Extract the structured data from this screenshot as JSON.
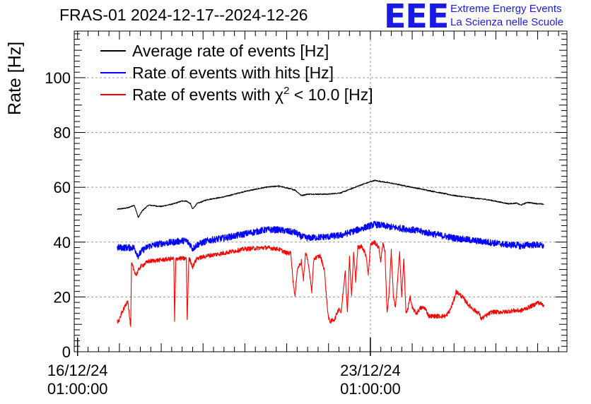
{
  "header": {
    "title": "FRAS-01 2024-12-17--2024-12-26",
    "logo_text": "EEE",
    "logo_line1": "Extreme Energy Events",
    "logo_line2": "La Scienza nelle Scuole"
  },
  "colors": {
    "black": "#000000",
    "blue": "#0000ff",
    "red": "#ff0000",
    "logo": "#1a1ae6"
  },
  "chart_data": {
    "type": "line",
    "title": "FRAS-01 2024-12-17--2024-12-26",
    "xlabel": "",
    "ylabel": "Rate [Hz]",
    "ylim": [
      0,
      117
    ],
    "xlim_days": [
      -0.08,
      11.7
    ],
    "x_unit": "days since 16/12/24 01:00:00",
    "grid": true,
    "legend_position": "top-left",
    "yticks": [
      0,
      20,
      40,
      60,
      80,
      100
    ],
    "xticks": [
      {
        "day": 0,
        "line1": "16/12/24",
        "line2": "01:00:00"
      },
      {
        "day": 7,
        "line1": "23/12/24",
        "line2": "01:00:00"
      }
    ],
    "legend": [
      {
        "label": "Average rate of events [Hz]",
        "color": "#000000"
      },
      {
        "label": "Rate of events with hits [Hz]",
        "color": "#0000ff"
      },
      {
        "label_prefix": "Rate of events with ",
        "chi": "χ",
        "sup": "2",
        "label_suffix": " < 10.0 [Hz]",
        "color": "#ff0000"
      }
    ],
    "series": [
      {
        "name": "Average rate of events [Hz]",
        "color": "#000000",
        "noise": 0.4,
        "points": [
          [
            0.95,
            52
          ],
          [
            1.2,
            52.5
          ],
          [
            1.35,
            53.5
          ],
          [
            1.4,
            51.5
          ],
          [
            1.45,
            49
          ],
          [
            1.55,
            51.5
          ],
          [
            1.7,
            53.5
          ],
          [
            2.0,
            53
          ],
          [
            2.3,
            54
          ],
          [
            2.5,
            55
          ],
          [
            2.6,
            55
          ],
          [
            2.7,
            54
          ],
          [
            2.75,
            52
          ],
          [
            2.85,
            54
          ],
          [
            3.1,
            55.5
          ],
          [
            3.5,
            56.5
          ],
          [
            4.0,
            58.5
          ],
          [
            4.5,
            60
          ],
          [
            4.8,
            60.5
          ],
          [
            5.2,
            59
          ],
          [
            5.35,
            57
          ],
          [
            5.5,
            57.5
          ],
          [
            6.0,
            57.5
          ],
          [
            6.3,
            58
          ],
          [
            6.8,
            61
          ],
          [
            7.1,
            62.5
          ],
          [
            7.5,
            61.5
          ],
          [
            8.0,
            60
          ],
          [
            8.5,
            58.5
          ],
          [
            9.0,
            57
          ],
          [
            9.5,
            56
          ],
          [
            9.8,
            55.5
          ],
          [
            10.3,
            54
          ],
          [
            10.5,
            54.2
          ],
          [
            10.6,
            53.5
          ],
          [
            10.75,
            54.5
          ],
          [
            11.0,
            54
          ],
          [
            11.15,
            53.8
          ]
        ]
      },
      {
        "name": "Rate of events with hits [Hz]",
        "color": "#0000ff",
        "noise": 2.4,
        "points": [
          [
            0.95,
            38
          ],
          [
            1.2,
            38
          ],
          [
            1.35,
            38
          ],
          [
            1.4,
            36.5
          ],
          [
            1.45,
            35
          ],
          [
            1.55,
            37
          ],
          [
            1.7,
            38.5
          ],
          [
            2.0,
            39.5
          ],
          [
            2.3,
            40
          ],
          [
            2.5,
            40.5
          ],
          [
            2.6,
            40.5
          ],
          [
            2.7,
            39
          ],
          [
            2.75,
            37.5
          ],
          [
            2.85,
            39
          ],
          [
            3.1,
            40.5
          ],
          [
            3.5,
            41.5
          ],
          [
            4.0,
            43
          ],
          [
            4.5,
            44.5
          ],
          [
            4.8,
            44.5
          ],
          [
            5.2,
            43.5
          ],
          [
            5.35,
            42
          ],
          [
            5.5,
            41.5
          ],
          [
            6.0,
            42
          ],
          [
            6.3,
            42.5
          ],
          [
            6.8,
            45
          ],
          [
            7.1,
            46.5
          ],
          [
            7.5,
            45.5
          ],
          [
            8.0,
            44.5
          ],
          [
            8.5,
            43
          ],
          [
            9.0,
            41.5
          ],
          [
            9.5,
            40.5
          ],
          [
            9.8,
            40
          ],
          [
            10.3,
            39
          ],
          [
            10.5,
            39
          ],
          [
            10.6,
            38.5
          ],
          [
            10.75,
            39
          ],
          [
            11.0,
            39
          ],
          [
            11.15,
            38.5
          ]
        ]
      },
      {
        "name": "Rate of events with chi2 < 10.0 [Hz]",
        "color": "#ff0000",
        "noise": 1.6,
        "points": [
          [
            0.95,
            11
          ],
          [
            1.0,
            11.5
          ],
          [
            1.05,
            14
          ],
          [
            1.15,
            17
          ],
          [
            1.2,
            19
          ],
          [
            1.24,
            13
          ],
          [
            1.27,
            9
          ],
          [
            1.29,
            32
          ],
          [
            1.32,
            31
          ],
          [
            1.4,
            28
          ],
          [
            1.5,
            31
          ],
          [
            1.7,
            33
          ],
          [
            2.0,
            33.5
          ],
          [
            2.3,
            34
          ],
          [
            2.32,
            11
          ],
          [
            2.35,
            34
          ],
          [
            2.5,
            34
          ],
          [
            2.6,
            34
          ],
          [
            2.62,
            11
          ],
          [
            2.66,
            34
          ],
          [
            2.7,
            33
          ],
          [
            2.75,
            31
          ],
          [
            2.85,
            34
          ],
          [
            3.1,
            35
          ],
          [
            3.5,
            36
          ],
          [
            4.0,
            37.5
          ],
          [
            4.5,
            38
          ],
          [
            4.8,
            37.5
          ],
          [
            5.0,
            36
          ],
          [
            5.1,
            36
          ],
          [
            5.15,
            26
          ],
          [
            5.2,
            20
          ],
          [
            5.25,
            30
          ],
          [
            5.35,
            33
          ],
          [
            5.4,
            26
          ],
          [
            5.45,
            36
          ],
          [
            5.5,
            34
          ],
          [
            5.6,
            22
          ],
          [
            5.65,
            34
          ],
          [
            5.8,
            35
          ],
          [
            5.9,
            30
          ],
          [
            5.95,
            20
          ],
          [
            6.0,
            12
          ],
          [
            6.05,
            11
          ],
          [
            6.15,
            12
          ],
          [
            6.25,
            16
          ],
          [
            6.3,
            14
          ],
          [
            6.4,
            30
          ],
          [
            6.45,
            14
          ],
          [
            6.5,
            35
          ],
          [
            6.55,
            20
          ],
          [
            6.6,
            36
          ],
          [
            6.65,
            26
          ],
          [
            6.7,
            38
          ],
          [
            6.8,
            38.5
          ],
          [
            6.9,
            35
          ],
          [
            6.95,
            28
          ],
          [
            7.0,
            39
          ],
          [
            7.1,
            40
          ],
          [
            7.2,
            38
          ],
          [
            7.25,
            33
          ],
          [
            7.3,
            40
          ],
          [
            7.35,
            36
          ],
          [
            7.4,
            14
          ],
          [
            7.45,
            22
          ],
          [
            7.5,
            37
          ],
          [
            7.55,
            20
          ],
          [
            7.6,
            16
          ],
          [
            7.65,
            26
          ],
          [
            7.7,
            36
          ],
          [
            7.75,
            20
          ],
          [
            7.8,
            34
          ],
          [
            7.85,
            14
          ],
          [
            7.9,
            16
          ],
          [
            7.95,
            20
          ],
          [
            8.0,
            16
          ],
          [
            8.1,
            14
          ],
          [
            8.2,
            16
          ],
          [
            8.3,
            16
          ],
          [
            8.4,
            13
          ],
          [
            8.6,
            13
          ],
          [
            8.8,
            13
          ],
          [
            8.9,
            15
          ],
          [
            9.0,
            19
          ],
          [
            9.05,
            22
          ],
          [
            9.2,
            20
          ],
          [
            9.35,
            17
          ],
          [
            9.5,
            15
          ],
          [
            9.6,
            14
          ],
          [
            9.65,
            12
          ],
          [
            9.75,
            13
          ],
          [
            9.9,
            14.5
          ],
          [
            10.2,
            14.5
          ],
          [
            10.4,
            15
          ],
          [
            10.6,
            15
          ],
          [
            10.75,
            16
          ],
          [
            10.9,
            17
          ],
          [
            11.0,
            18
          ],
          [
            11.15,
            17
          ]
        ]
      }
    ]
  }
}
